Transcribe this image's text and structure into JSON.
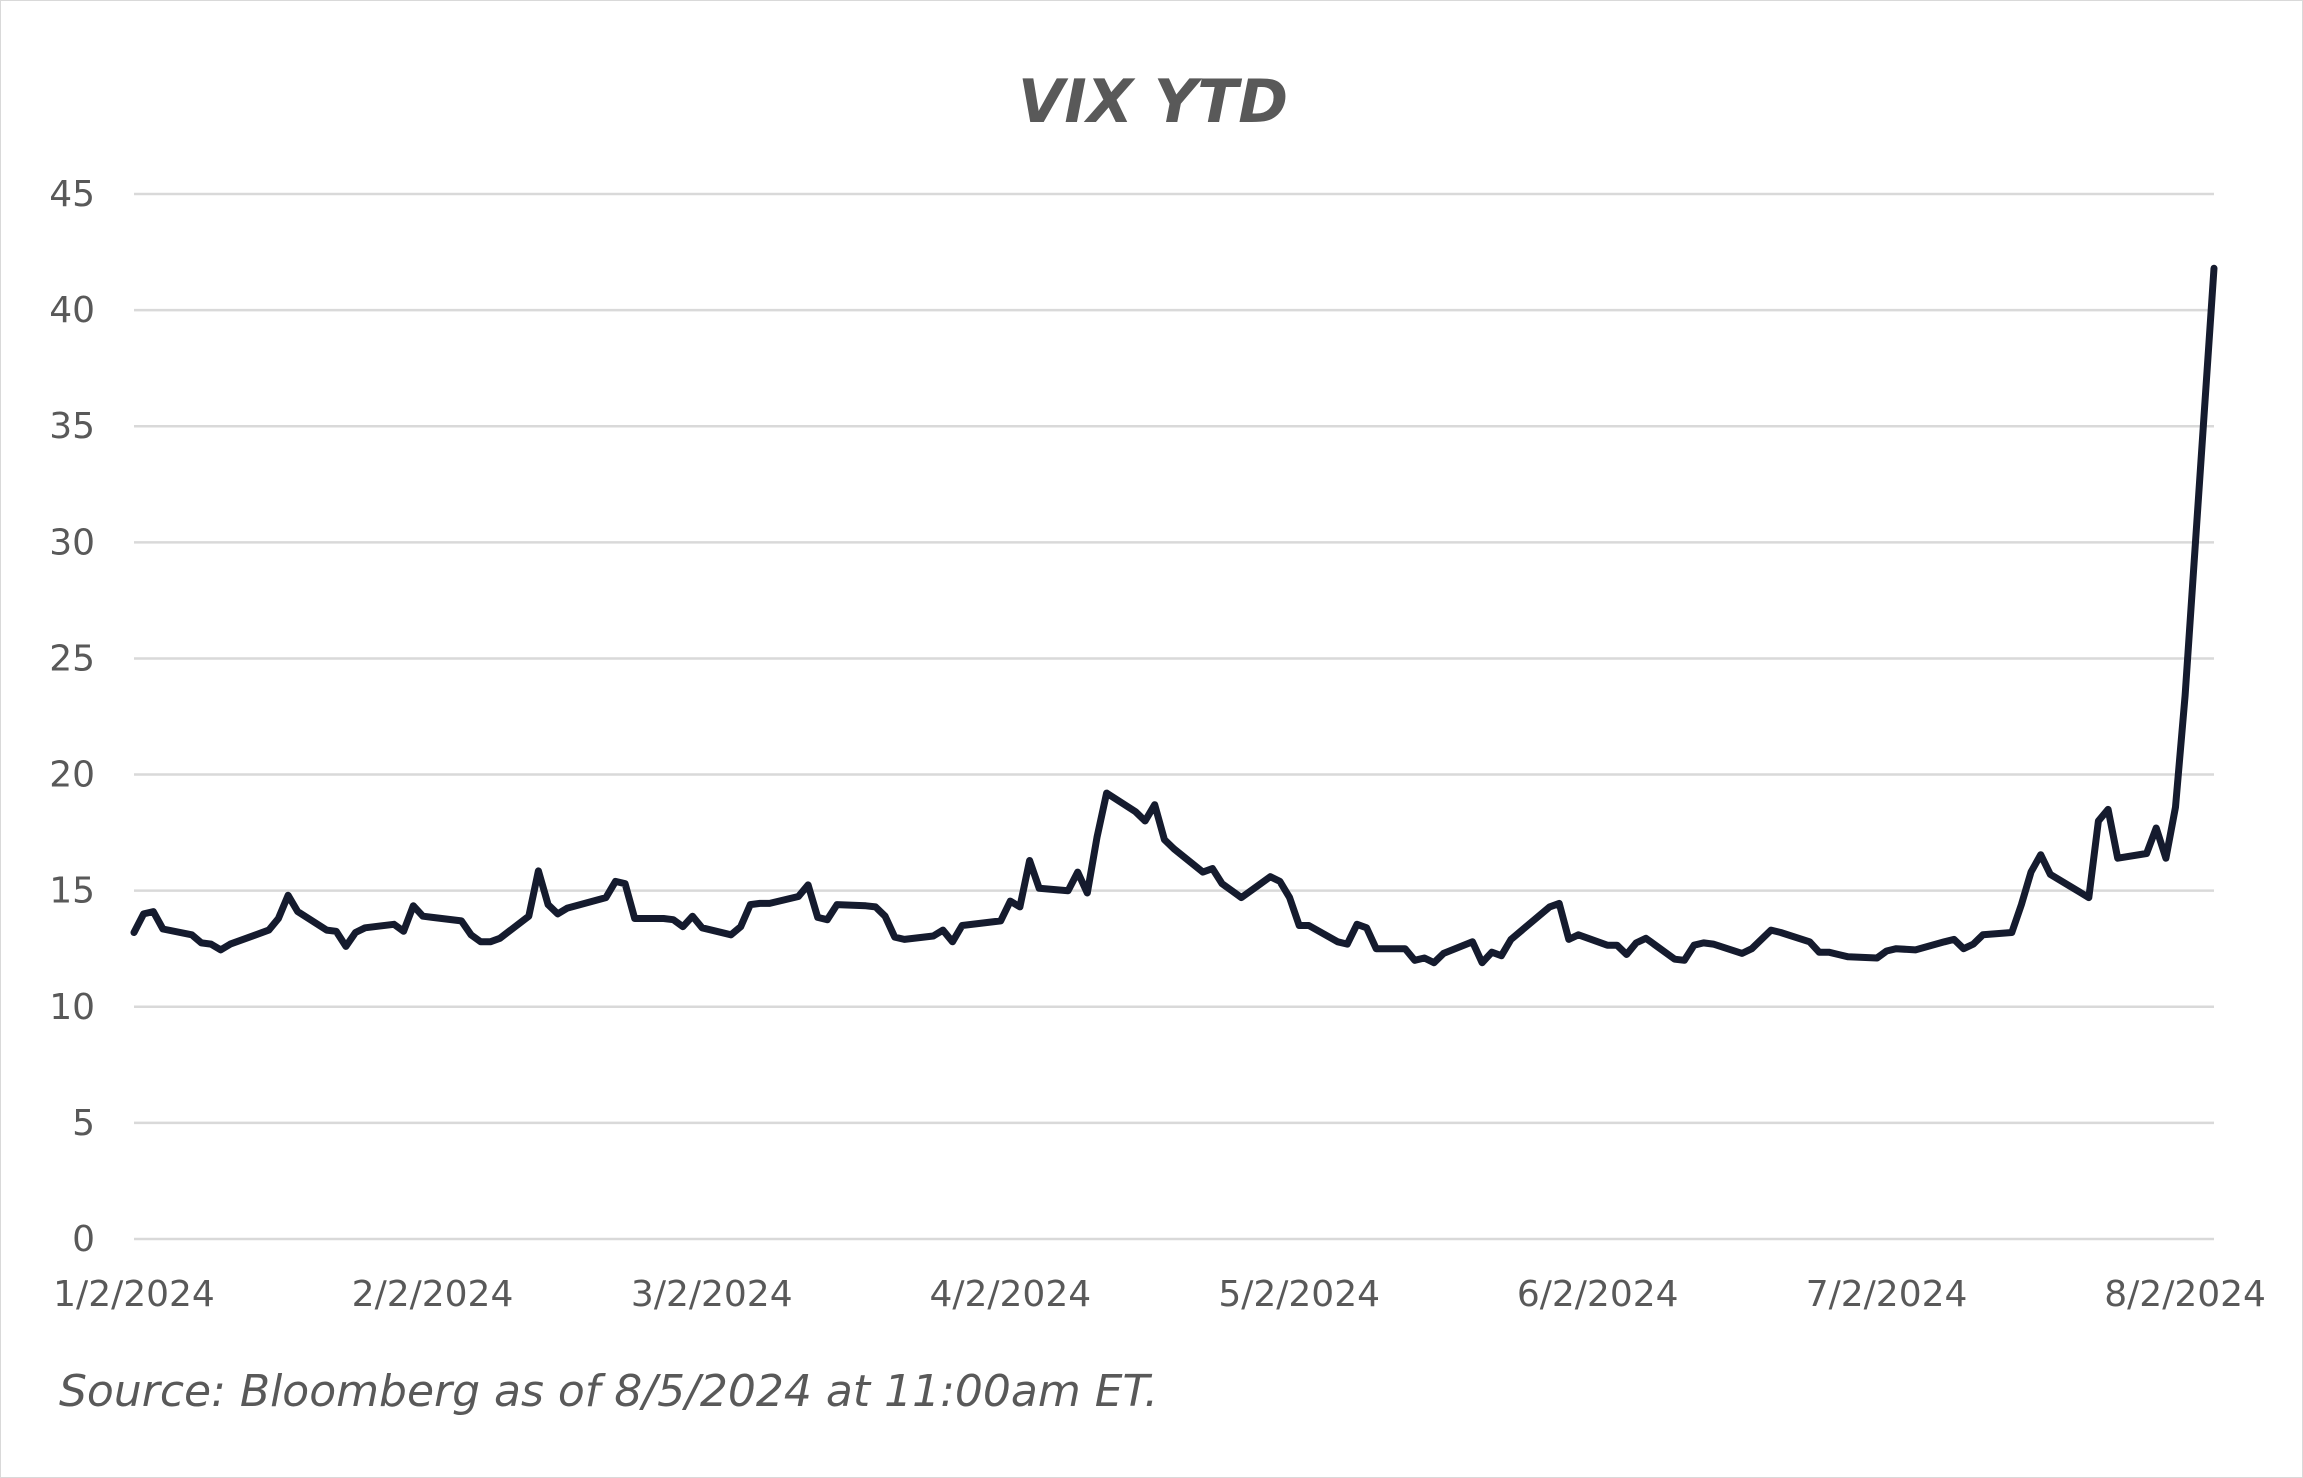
{
  "chart_data": {
    "type": "line",
    "title": "VIX YTD",
    "xlabel": "",
    "ylabel": "",
    "ylim": [
      0,
      45
    ],
    "yticks": [
      0,
      5,
      10,
      15,
      20,
      25,
      30,
      35,
      40,
      45
    ],
    "xticks": [
      "1/2/2024",
      "2/2/2024",
      "3/2/2024",
      "4/2/2024",
      "5/2/2024",
      "6/2/2024",
      "7/2/2024",
      "8/2/2024"
    ],
    "xlim": [
      "1/2/2024",
      "8/5/2024"
    ],
    "grid": "horizontal",
    "legend": "none",
    "line_color": "#151b2e",
    "series": [
      {
        "x": [
          "1/2/2024",
          "1/3/2024",
          "1/4/2024",
          "1/5/2024",
          "1/8/2024",
          "1/9/2024",
          "1/10/2024",
          "1/11/2024",
          "1/12/2024",
          "1/16/2024",
          "1/17/2024",
          "1/18/2024",
          "1/19/2024",
          "1/22/2024",
          "1/23/2024",
          "1/24/2024",
          "1/25/2024",
          "1/26/2024",
          "1/29/2024",
          "1/30/2024",
          "1/31/2024",
          "2/1/2024",
          "2/2/2024",
          "2/5/2024",
          "2/6/2024",
          "2/7/2024",
          "2/8/2024",
          "2/9/2024",
          "2/12/2024",
          "2/13/2024",
          "2/14/2024",
          "2/15/2024",
          "2/16/2024",
          "2/20/2024",
          "2/21/2024",
          "2/22/2024",
          "2/23/2024",
          "2/26/2024",
          "2/27/2024",
          "2/28/2024",
          "2/29/2024",
          "3/1/2024",
          "3/4/2024",
          "3/5/2024",
          "3/6/2024",
          "3/7/2024",
          "3/8/2024",
          "3/11/2024",
          "3/12/2024",
          "3/13/2024",
          "3/14/2024",
          "3/15/2024",
          "3/18/2024",
          "3/19/2024",
          "3/20/2024",
          "3/21/2024",
          "3/22/2024",
          "3/25/2024",
          "3/26/2024",
          "3/27/2024",
          "3/28/2024",
          "4/1/2024",
          "4/2/2024",
          "4/3/2024",
          "4/4/2024",
          "4/5/2024",
          "4/8/2024",
          "4/9/2024",
          "4/10/2024",
          "4/11/2024",
          "4/12/2024",
          "4/15/2024",
          "4/16/2024",
          "4/17/2024",
          "4/18/2024",
          "4/19/2024",
          "4/22/2024",
          "4/23/2024",
          "4/24/2024",
          "4/25/2024",
          "4/26/2024",
          "4/29/2024",
          "4/30/2024",
          "5/1/2024",
          "5/2/2024",
          "5/3/2024",
          "5/6/2024",
          "5/7/2024",
          "5/8/2024",
          "5/9/2024",
          "5/10/2024",
          "5/13/2024",
          "5/14/2024",
          "5/15/2024",
          "5/16/2024",
          "5/17/2024",
          "5/20/2024",
          "5/21/2024",
          "5/22/2024",
          "5/23/2024",
          "5/24/2024",
          "5/28/2024",
          "5/29/2024",
          "5/30/2024",
          "5/31/2024",
          "6/3/2024",
          "6/4/2024",
          "6/5/2024",
          "6/6/2024",
          "6/7/2024",
          "6/10/2024",
          "6/11/2024",
          "6/12/2024",
          "6/13/2024",
          "6/14/2024",
          "6/17/2024",
          "6/18/2024",
          "6/20/2024",
          "6/21/2024",
          "6/24/2024",
          "6/25/2024",
          "6/26/2024",
          "6/27/2024",
          "6/28/2024",
          "7/1/2024",
          "7/2/2024",
          "7/3/2024",
          "7/5/2024",
          "7/8/2024",
          "7/9/2024",
          "7/10/2024",
          "7/11/2024",
          "7/12/2024",
          "7/15/2024",
          "7/16/2024",
          "7/17/2024",
          "7/18/2024",
          "7/19/2024",
          "7/22/2024",
          "7/23/2024",
          "7/24/2024",
          "7/25/2024",
          "7/26/2024",
          "7/29/2024",
          "7/30/2024",
          "7/31/2024",
          "8/1/2024",
          "8/2/2024",
          "8/5/2024"
        ],
        "values": [
          13.2,
          14.0,
          14.1,
          13.35,
          13.1,
          12.75,
          12.7,
          12.45,
          12.7,
          13.3,
          13.8,
          14.8,
          14.1,
          13.3,
          13.25,
          12.6,
          13.2,
          13.4,
          13.55,
          13.25,
          14.35,
          13.9,
          13.85,
          13.7,
          13.1,
          12.8,
          12.8,
          12.95,
          13.9,
          15.85,
          14.4,
          14.0,
          14.25,
          14.7,
          15.4,
          15.3,
          13.8,
          13.8,
          13.75,
          13.45,
          13.9,
          13.4,
          13.1,
          13.45,
          14.4,
          14.45,
          14.45,
          14.75,
          15.25,
          13.85,
          13.75,
          14.4,
          14.35,
          14.3,
          13.9,
          13.0,
          12.9,
          13.05,
          13.3,
          12.8,
          13.5,
          13.7,
          14.55,
          14.3,
          16.3,
          15.1,
          15.0,
          15.8,
          14.9,
          17.3,
          19.2,
          18.4,
          18.0,
          18.7,
          17.2,
          16.8,
          15.8,
          15.95,
          15.3,
          15.0,
          14.7,
          15.6,
          15.4,
          14.7,
          13.5,
          13.5,
          12.8,
          12.7,
          13.55,
          13.4,
          12.5,
          12.5,
          12.0,
          12.1,
          11.9,
          12.3,
          12.8,
          11.9,
          12.35,
          12.2,
          12.9,
          14.3,
          14.45,
          12.9,
          13.1,
          12.65,
          12.65,
          12.25,
          12.75,
          12.95,
          12.05,
          12.0,
          12.65,
          12.75,
          12.7,
          12.3,
          12.5,
          13.3,
          13.2,
          12.8,
          12.35,
          12.35,
          12.25,
          12.15,
          12.1,
          12.4,
          12.5,
          12.45,
          12.8,
          12.9,
          12.5,
          12.7,
          13.1,
          13.2,
          14.4,
          15.8,
          16.55,
          15.7,
          14.95,
          14.7,
          18.0,
          18.5,
          16.4,
          16.6,
          17.7,
          16.4,
          18.6,
          23.4,
          41.8
        ]
      }
    ]
  },
  "footnote": "Source: Bloomberg as of 8/5/2024 at 11:00am ET."
}
